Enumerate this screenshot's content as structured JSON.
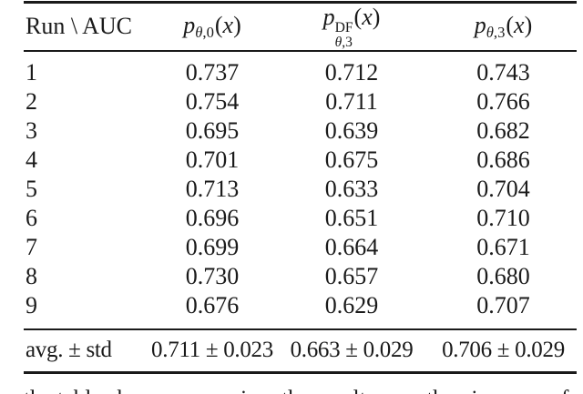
{
  "page": {
    "background": "#ffffff",
    "text_color": "#1a1a1a",
    "rule_color": "#1a1a1a"
  },
  "table": {
    "header": {
      "col0": "Run \\ AUC",
      "math_cols": [
        {
          "base": "p",
          "sup": "",
          "sub_var": "θ",
          "sub_rest": ",0",
          "arg": "x"
        },
        {
          "base": "p",
          "sup": "DF",
          "sub_var": "θ",
          "sub_rest": ",3",
          "arg": "x"
        },
        {
          "base": "p",
          "sup": "",
          "sub_var": "θ",
          "sub_rest": ",3",
          "arg": "x"
        }
      ]
    },
    "rows": [
      {
        "run": "1",
        "values": [
          "0.737",
          "0.712",
          "0.743"
        ]
      },
      {
        "run": "2",
        "values": [
          "0.754",
          "0.711",
          "0.766"
        ]
      },
      {
        "run": "3",
        "values": [
          "0.695",
          "0.639",
          "0.682"
        ]
      },
      {
        "run": "4",
        "values": [
          "0.701",
          "0.675",
          "0.686"
        ]
      },
      {
        "run": "5",
        "values": [
          "0.713",
          "0.633",
          "0.704"
        ]
      },
      {
        "run": "6",
        "values": [
          "0.696",
          "0.651",
          "0.710"
        ]
      },
      {
        "run": "7",
        "values": [
          "0.699",
          "0.664",
          "0.671"
        ]
      },
      {
        "run": "8",
        "values": [
          "0.730",
          "0.657",
          "0.680"
        ]
      },
      {
        "run": "9",
        "values": [
          "0.676",
          "0.629",
          "0.707"
        ]
      }
    ],
    "summary": {
      "label": "avg. ± std",
      "values": [
        "0.711 ± 0.023",
        "0.663 ± 0.029",
        "0.706 ± 0.029"
      ]
    }
  },
  "caption_fragment": "the table above summarizes the results over the nine runs of"
}
